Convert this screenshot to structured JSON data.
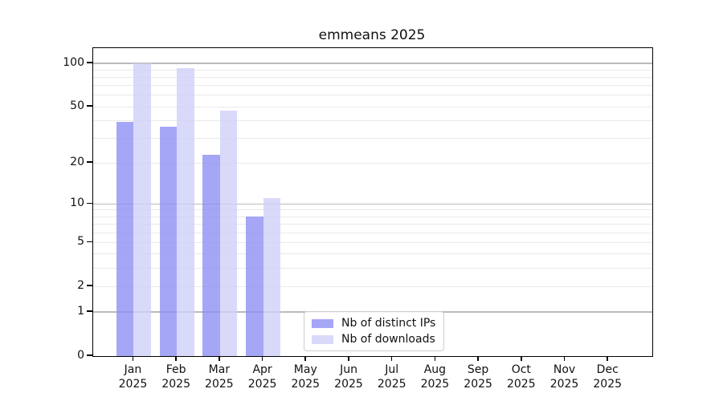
{
  "chart_data": {
    "type": "bar",
    "title": "emmeans 2025",
    "year": "2025",
    "categories": [
      "Jan",
      "Feb",
      "Mar",
      "Apr",
      "May",
      "Jun",
      "Jul",
      "Aug",
      "Sep",
      "Oct",
      "Nov",
      "Dec"
    ],
    "series": [
      {
        "name": "Nb of distinct IPs",
        "color": "#a6a6f6",
        "fill": "rgba(144,144,244,0.8)",
        "values": [
          39,
          36,
          23,
          8,
          0,
          0,
          0,
          0,
          0,
          0,
          0,
          0
        ]
      },
      {
        "name": "Nb of downloads",
        "color": "#d9d9f9",
        "fill": "rgba(208,208,247,0.8)",
        "values": [
          100,
          93,
          47,
          11,
          0,
          0,
          0,
          0,
          0,
          0,
          0,
          0
        ]
      }
    ],
    "xlabel": "",
    "ylabel": "",
    "yscale": "log1p",
    "ylim": [
      0,
      127.5
    ],
    "yticks": [
      0,
      1,
      2,
      5,
      10,
      20,
      50,
      100
    ],
    "grid": {
      "major": [
        1,
        10,
        100
      ],
      "minor": [
        2,
        3,
        4,
        5,
        6,
        7,
        8,
        9,
        20,
        30,
        40,
        50,
        60,
        70,
        80,
        90
      ]
    },
    "legend_position": "lower center",
    "colors": {
      "axis": "#000000",
      "text": "#111111",
      "major_grid": "#bbbbbb",
      "minor_grid": "#e9e9e9",
      "background": "#ffffff"
    }
  }
}
